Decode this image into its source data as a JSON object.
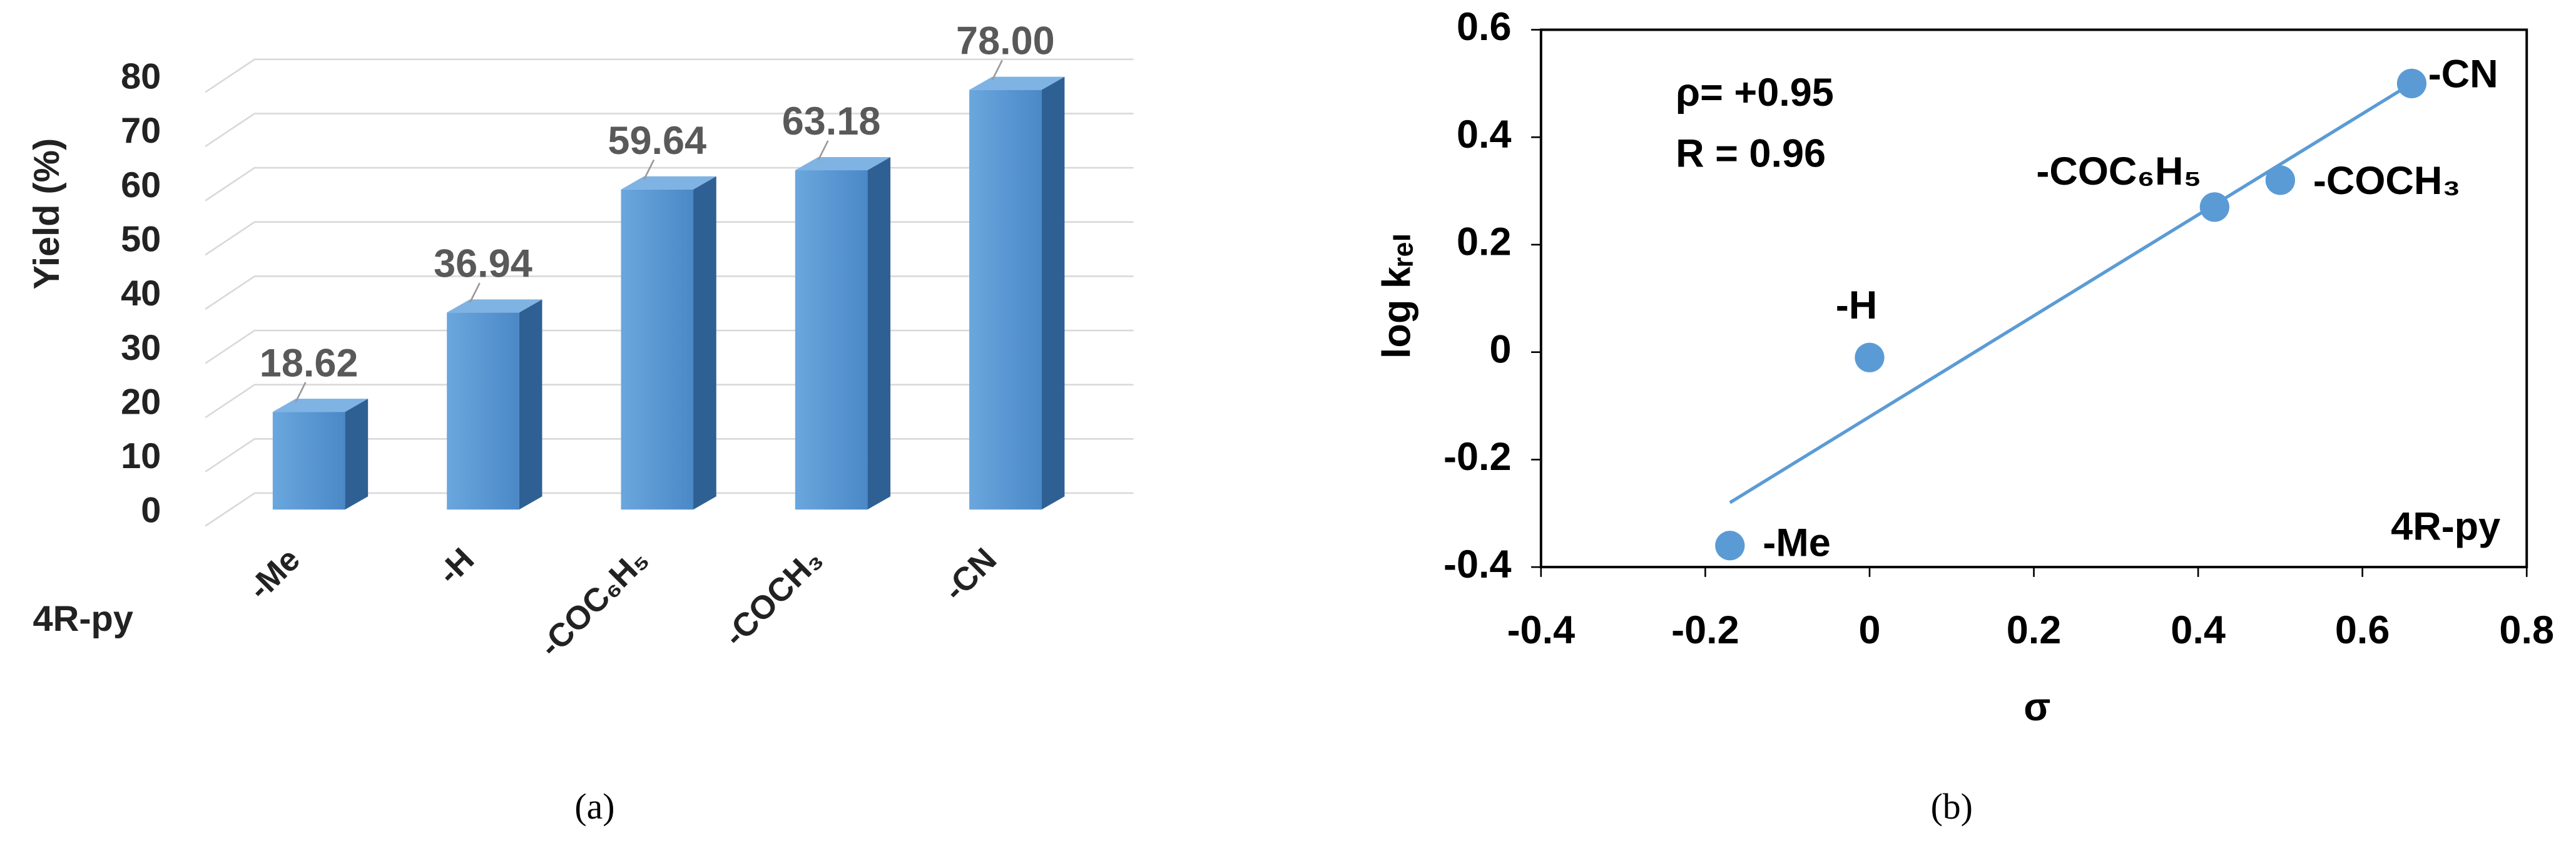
{
  "chart_data": [
    {
      "type": "bar3d",
      "ylabel": "Yield (%)",
      "xlabel": "4R-py",
      "categories": [
        "-Me",
        "-H",
        "-COC₆H₅",
        "-COCH₃",
        "-CN"
      ],
      "values": [
        18.62,
        36.94,
        59.64,
        63.18,
        78
      ],
      "value_labels": [
        "18.62",
        "36.94",
        "59.64",
        "63.18",
        "78.00"
      ],
      "color": "#5b9bd5",
      "ylim": [
        0,
        80
      ],
      "yticks": [
        0,
        10,
        20,
        30,
        40,
        50,
        60,
        70,
        80
      ],
      "grid": true,
      "caption": "(a)"
    },
    {
      "type": "scatter",
      "xlabel": "σ",
      "ylabel": "log kᵣₑₗ",
      "x": [
        -0.17,
        0,
        0.42,
        0.5,
        0.66
      ],
      "y": [
        -0.36,
        -0.01,
        0.27,
        0.32,
        0.5
      ],
      "point_labels": [
        "-Me",
        "-H",
        "-COC₆H₅",
        "-COCH₃",
        "-CN"
      ],
      "color": "#5b9bd5",
      "trendline": {
        "x": [
          -0.17,
          0.66
        ],
        "y": [
          -0.28,
          0.5
        ]
      },
      "annotations": [
        "ρ= +0.95",
        "R = 0.96",
        "4R-py"
      ],
      "xlim": [
        -0.4,
        0.8
      ],
      "xticks": [
        -0.4,
        -0.2,
        0,
        0.2,
        0.4,
        0.6,
        0.8
      ],
      "ylim": [
        -0.4,
        0.6
      ],
      "yticks": [
        -0.4,
        -0.2,
        0,
        0.2,
        0.4,
        0.6
      ],
      "caption": "(b)"
    }
  ]
}
